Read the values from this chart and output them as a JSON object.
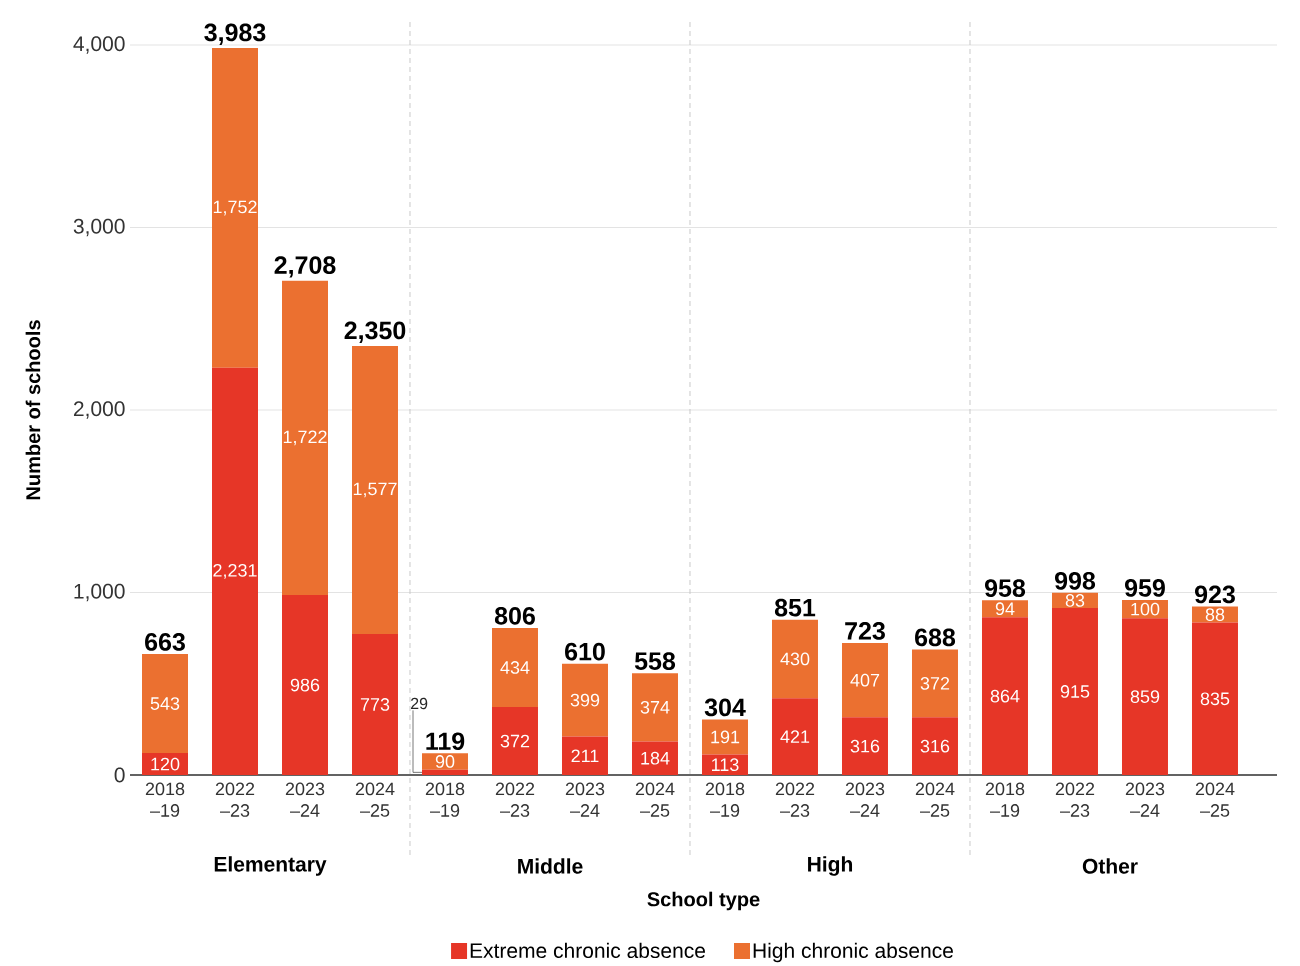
{
  "chart_data": {
    "type": "bar",
    "stacked": true,
    "xlabel": "School type",
    "ylabel": "Number of schools",
    "categories": [
      "2018 –19",
      "2022 –23",
      "2023 –24",
      "2024 –25",
      "2018 –19",
      "2022 –23",
      "2023 –24",
      "2024 –25",
      "2018 –19",
      "2022 –23",
      "2023 –24",
      "2024 –25",
      "2018 –19",
      "2022 –23",
      "2023 –24",
      "2024 –25"
    ],
    "series": [
      {
        "name": "Extreme chronic absence",
        "color": "#e63627",
        "values": [
          120,
          2231,
          986,
          773,
          29,
          372,
          211,
          184,
          113,
          421,
          316,
          316,
          864,
          915,
          859,
          835
        ],
        "value_labels": [
          "120",
          "2,231",
          "986",
          "773",
          "29",
          "372",
          "211",
          "184",
          "113",
          "421",
          "316",
          "316",
          "864",
          "915",
          "859",
          "835"
        ]
      },
      {
        "name": "High chronic absence",
        "color": "#eb7030",
        "values": [
          543,
          1752,
          1722,
          1577,
          90,
          434,
          399,
          374,
          191,
          430,
          407,
          372,
          94,
          83,
          100,
          88
        ],
        "value_labels": [
          "543",
          "1,752",
          "1,722",
          "1,577",
          "90",
          "434",
          "399",
          "374",
          "191",
          "430",
          "407",
          "372",
          "94",
          "83",
          "100",
          "88"
        ]
      }
    ],
    "totals": [
      "663",
      "3,983",
      "2,708",
      "2,350",
      "119",
      "806",
      "610",
      "558",
      "304",
      "851",
      "723",
      "688",
      "958",
      "998",
      "959",
      "923"
    ],
    "ylim": [
      0,
      4000
    ],
    "yticks": [
      0,
      {
        "value": 1000,
        "label": "1,000"
      },
      {
        "value": 2000,
        "label": "2,000"
      },
      {
        "value": 3000,
        "label": "3,000"
      },
      {
        "value": 4000,
        "label": "4,000"
      }
    ],
    "grid": "y",
    "legend": "bottom",
    "annotations": [
      "Elementary",
      "Middle",
      "High",
      "Other"
    ]
  }
}
